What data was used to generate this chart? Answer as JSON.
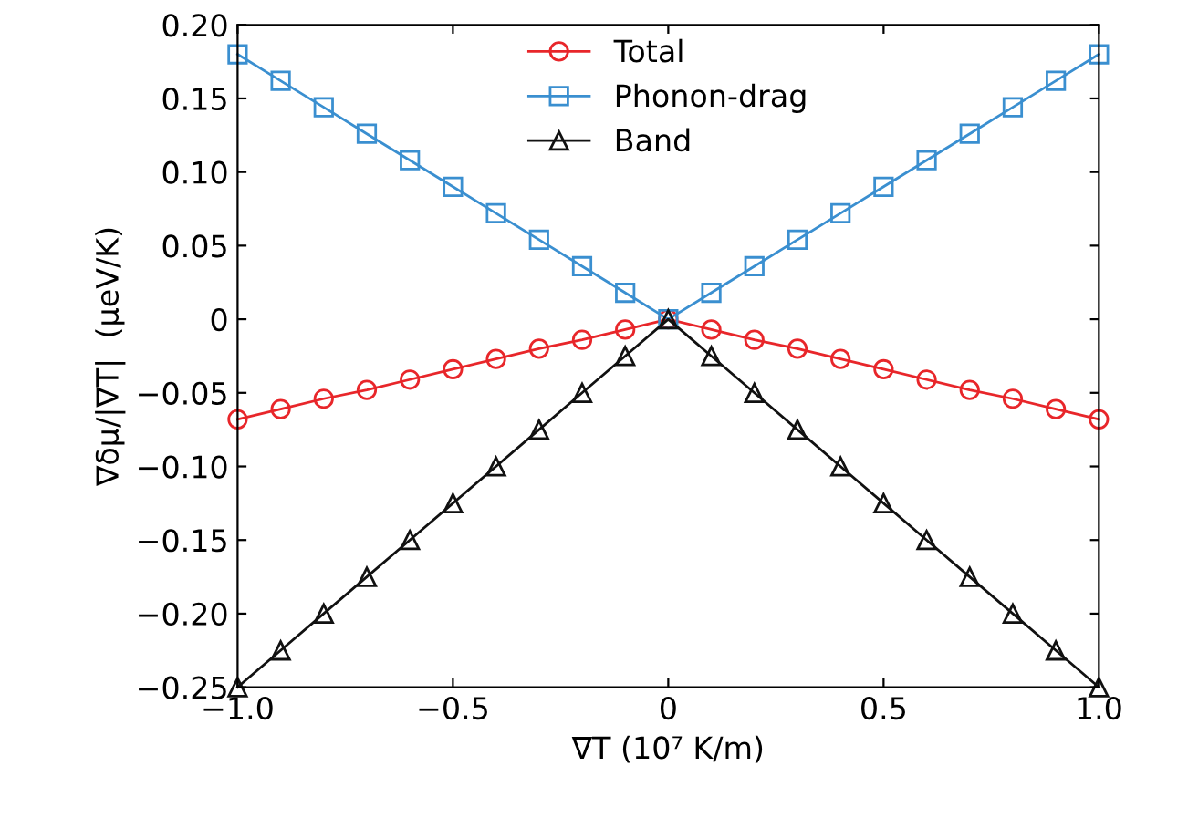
{
  "chart_data": {
    "type": "line",
    "xlabel": "∇T (10⁷ K/m)",
    "ylabel": "∇δμ/|∇T|  (μeV/K)",
    "x": [
      -1.0,
      -0.9,
      -0.8,
      -0.7,
      -0.6,
      -0.5,
      -0.4,
      -0.3,
      -0.2,
      -0.1,
      0,
      0.1,
      0.2,
      0.3,
      0.4,
      0.5,
      0.6,
      0.7,
      0.8,
      0.9,
      1.0
    ],
    "series": [
      {
        "name": "Total",
        "color": "#e8262a",
        "marker": "circle",
        "values": [
          -0.068,
          -0.061,
          -0.054,
          -0.048,
          -0.041,
          -0.034,
          -0.027,
          -0.02,
          -0.014,
          -0.007,
          0,
          -0.007,
          -0.014,
          -0.02,
          -0.027,
          -0.034,
          -0.041,
          -0.048,
          -0.054,
          -0.061,
          -0.068
        ]
      },
      {
        "name": "Phonon-drag",
        "color": "#3a8fd0",
        "marker": "square",
        "values": [
          0.18,
          0.162,
          0.144,
          0.126,
          0.108,
          0.09,
          0.072,
          0.054,
          0.036,
          0.018,
          0,
          0.018,
          0.036,
          0.054,
          0.072,
          0.09,
          0.108,
          0.126,
          0.144,
          0.162,
          0.18
        ]
      },
      {
        "name": "Band",
        "color": "#111111",
        "marker": "triangle",
        "values": [
          -0.25,
          -0.225,
          -0.2,
          -0.175,
          -0.15,
          -0.125,
          -0.1,
          -0.075,
          -0.05,
          -0.025,
          0,
          -0.025,
          -0.05,
          -0.075,
          -0.1,
          -0.125,
          -0.15,
          -0.175,
          -0.2,
          -0.225,
          -0.25
        ]
      }
    ],
    "xlim": [
      -1.0,
      1.0
    ],
    "xticks": [
      {
        "value": -1.0,
        "label": "−1.0"
      },
      {
        "value": -0.5,
        "label": "−0.5"
      },
      0,
      {
        "value": 0.5,
        "label": "0.5"
      },
      {
        "value": 1.0,
        "label": "1.0"
      }
    ],
    "ylim": [
      -0.25,
      0.2
    ],
    "yticks": [
      {
        "value": -0.25,
        "label": "−0.25"
      },
      {
        "value": -0.2,
        "label": "−0.20"
      },
      {
        "value": -0.15,
        "label": "−0.15"
      },
      {
        "value": -0.1,
        "label": "−0.10"
      },
      {
        "value": -0.05,
        "label": "−0.05"
      },
      0,
      {
        "value": 0.05,
        "label": "0.05"
      },
      {
        "value": 0.1,
        "label": "0.10"
      },
      {
        "value": 0.15,
        "label": "0.15"
      },
      {
        "value": 0.2,
        "label": "0.20"
      }
    ],
    "grid": false,
    "legend": "top",
    "line_style": "solid"
  }
}
